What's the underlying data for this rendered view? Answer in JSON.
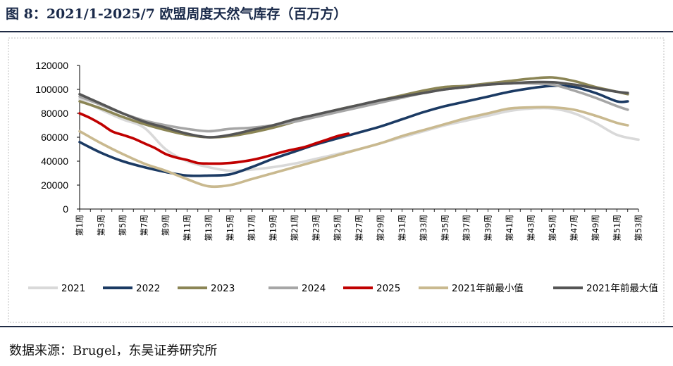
{
  "header": {
    "title": "图 8：2021/1-2025/7 欧盟周度天然气库存（百万方）"
  },
  "footer": {
    "source": "数据来源：Brugel，东吴证券研究所"
  },
  "chart_data": {
    "type": "line",
    "ylim": [
      0,
      120000
    ],
    "yticks": [
      "0",
      "20000",
      "40000",
      "60000",
      "80000",
      "100000",
      "120000"
    ],
    "xlim": [
      1,
      53
    ],
    "categories": [
      "第1周",
      "第3周",
      "第5周",
      "第7周",
      "第9周",
      "第11周",
      "第13周",
      "第15周",
      "第17周",
      "第19周",
      "第21周",
      "第23周",
      "第25周",
      "第27周",
      "第29周",
      "第31周",
      "第33周",
      "第35周",
      "第37周",
      "第39周",
      "第41周",
      "第43周",
      "第45周",
      "第47周",
      "第49周",
      "第51周",
      "第53周"
    ],
    "legend_position": "bottom",
    "series": [
      {
        "name": "2021",
        "color": "#d9d9d9",
        "points": [
          [
            1,
            92000
          ],
          [
            3,
            83000
          ],
          [
            5,
            75000
          ],
          [
            7,
            68000
          ],
          [
            9,
            50000
          ],
          [
            11,
            40000
          ],
          [
            13,
            35000
          ],
          [
            15,
            32000
          ],
          [
            17,
            33000
          ],
          [
            19,
            35000
          ],
          [
            21,
            38000
          ],
          [
            23,
            42000
          ],
          [
            25,
            46000
          ],
          [
            27,
            50000
          ],
          [
            29,
            55000
          ],
          [
            31,
            60000
          ],
          [
            33,
            65000
          ],
          [
            35,
            70000
          ],
          [
            37,
            74000
          ],
          [
            39,
            78000
          ],
          [
            41,
            82000
          ],
          [
            43,
            84000
          ],
          [
            45,
            84000
          ],
          [
            47,
            80000
          ],
          [
            49,
            72000
          ],
          [
            51,
            62000
          ],
          [
            53,
            58000
          ]
        ]
      },
      {
        "name": "2022",
        "color": "#1b3a63",
        "points": [
          [
            1,
            56000
          ],
          [
            3,
            47000
          ],
          [
            5,
            40000
          ],
          [
            7,
            35000
          ],
          [
            9,
            31000
          ],
          [
            11,
            28000
          ],
          [
            13,
            28000
          ],
          [
            15,
            29000
          ],
          [
            17,
            35000
          ],
          [
            19,
            42000
          ],
          [
            21,
            48000
          ],
          [
            23,
            54000
          ],
          [
            25,
            59000
          ],
          [
            27,
            64000
          ],
          [
            29,
            69000
          ],
          [
            31,
            75000
          ],
          [
            33,
            81000
          ],
          [
            35,
            86000
          ],
          [
            37,
            90000
          ],
          [
            39,
            94000
          ],
          [
            41,
            98000
          ],
          [
            43,
            101000
          ],
          [
            45,
            103000
          ],
          [
            47,
            102000
          ],
          [
            49,
            97000
          ],
          [
            51,
            90000
          ],
          [
            52,
            90000
          ]
        ]
      },
      {
        "name": "2023",
        "color": "#8b8555",
        "points": [
          [
            1,
            90000
          ],
          [
            3,
            84000
          ],
          [
            5,
            77000
          ],
          [
            7,
            71000
          ],
          [
            9,
            66000
          ],
          [
            11,
            62000
          ],
          [
            13,
            60000
          ],
          [
            15,
            61000
          ],
          [
            17,
            64000
          ],
          [
            19,
            68000
          ],
          [
            21,
            73000
          ],
          [
            23,
            78000
          ],
          [
            25,
            83000
          ],
          [
            27,
            87000
          ],
          [
            29,
            91000
          ],
          [
            31,
            95000
          ],
          [
            33,
            99000
          ],
          [
            35,
            102000
          ],
          [
            37,
            103000
          ],
          [
            39,
            105000
          ],
          [
            41,
            107000
          ],
          [
            43,
            109000
          ],
          [
            45,
            110000
          ],
          [
            47,
            107000
          ],
          [
            49,
            102000
          ],
          [
            51,
            98000
          ],
          [
            52,
            96000
          ]
        ]
      },
      {
        "name": "2024",
        "color": "#a6a6a6",
        "points": [
          [
            1,
            94000
          ],
          [
            3,
            87000
          ],
          [
            5,
            80000
          ],
          [
            7,
            74000
          ],
          [
            9,
            70000
          ],
          [
            11,
            67000
          ],
          [
            13,
            65000
          ],
          [
            15,
            67000
          ],
          [
            17,
            68000
          ],
          [
            19,
            70000
          ],
          [
            21,
            73000
          ],
          [
            23,
            77000
          ],
          [
            25,
            81000
          ],
          [
            27,
            85000
          ],
          [
            29,
            89000
          ],
          [
            31,
            93000
          ],
          [
            33,
            97000
          ],
          [
            35,
            100000
          ],
          [
            37,
            102000
          ],
          [
            39,
            104000
          ],
          [
            41,
            105000
          ],
          [
            43,
            105000
          ],
          [
            45,
            104000
          ],
          [
            47,
            99000
          ],
          [
            49,
            93000
          ],
          [
            51,
            86000
          ],
          [
            52,
            83000
          ]
        ]
      },
      {
        "name": "2025",
        "color": "#c00000",
        "points": [
          [
            1,
            80000
          ],
          [
            2,
            76000
          ],
          [
            3,
            71000
          ],
          [
            4,
            65000
          ],
          [
            5,
            62000
          ],
          [
            6,
            59000
          ],
          [
            7,
            55000
          ],
          [
            8,
            51000
          ],
          [
            9,
            46000
          ],
          [
            10,
            43000
          ],
          [
            11,
            41000
          ],
          [
            12,
            38500
          ],
          [
            13,
            38000
          ],
          [
            14,
            38000
          ],
          [
            15,
            38500
          ],
          [
            16,
            39500
          ],
          [
            17,
            41000
          ],
          [
            18,
            43000
          ],
          [
            19,
            45500
          ],
          [
            20,
            48000
          ],
          [
            21,
            50000
          ],
          [
            22,
            52000
          ],
          [
            23,
            55000
          ],
          [
            24,
            58000
          ],
          [
            25,
            61000
          ],
          [
            26,
            63000
          ]
        ]
      },
      {
        "name": "2021年前最小值",
        "color": "#c9b98f",
        "points": [
          [
            1,
            65000
          ],
          [
            3,
            55000
          ],
          [
            5,
            46000
          ],
          [
            7,
            38000
          ],
          [
            9,
            32000
          ],
          [
            11,
            25000
          ],
          [
            13,
            19000
          ],
          [
            15,
            20000
          ],
          [
            17,
            25000
          ],
          [
            19,
            30000
          ],
          [
            21,
            35000
          ],
          [
            23,
            40000
          ],
          [
            25,
            45000
          ],
          [
            27,
            50000
          ],
          [
            29,
            55000
          ],
          [
            31,
            61000
          ],
          [
            33,
            66000
          ],
          [
            35,
            71000
          ],
          [
            37,
            76000
          ],
          [
            39,
            80000
          ],
          [
            41,
            84000
          ],
          [
            43,
            85000
          ],
          [
            45,
            85000
          ],
          [
            47,
            83000
          ],
          [
            49,
            78000
          ],
          [
            51,
            72000
          ],
          [
            52,
            70000
          ]
        ]
      },
      {
        "name": "2021年前最大值",
        "color": "#555555",
        "points": [
          [
            1,
            96000
          ],
          [
            3,
            88000
          ],
          [
            5,
            80000
          ],
          [
            7,
            73000
          ],
          [
            9,
            68000
          ],
          [
            11,
            63000
          ],
          [
            13,
            60000
          ],
          [
            15,
            62000
          ],
          [
            17,
            66000
          ],
          [
            19,
            70000
          ],
          [
            21,
            75000
          ],
          [
            23,
            79000
          ],
          [
            25,
            83000
          ],
          [
            27,
            87000
          ],
          [
            29,
            91000
          ],
          [
            31,
            94000
          ],
          [
            33,
            97000
          ],
          [
            35,
            100000
          ],
          [
            37,
            102000
          ],
          [
            39,
            104000
          ],
          [
            41,
            105000
          ],
          [
            43,
            106000
          ],
          [
            45,
            106000
          ],
          [
            47,
            104000
          ],
          [
            49,
            101000
          ],
          [
            51,
            98000
          ],
          [
            52,
            97000
          ]
        ]
      }
    ]
  }
}
